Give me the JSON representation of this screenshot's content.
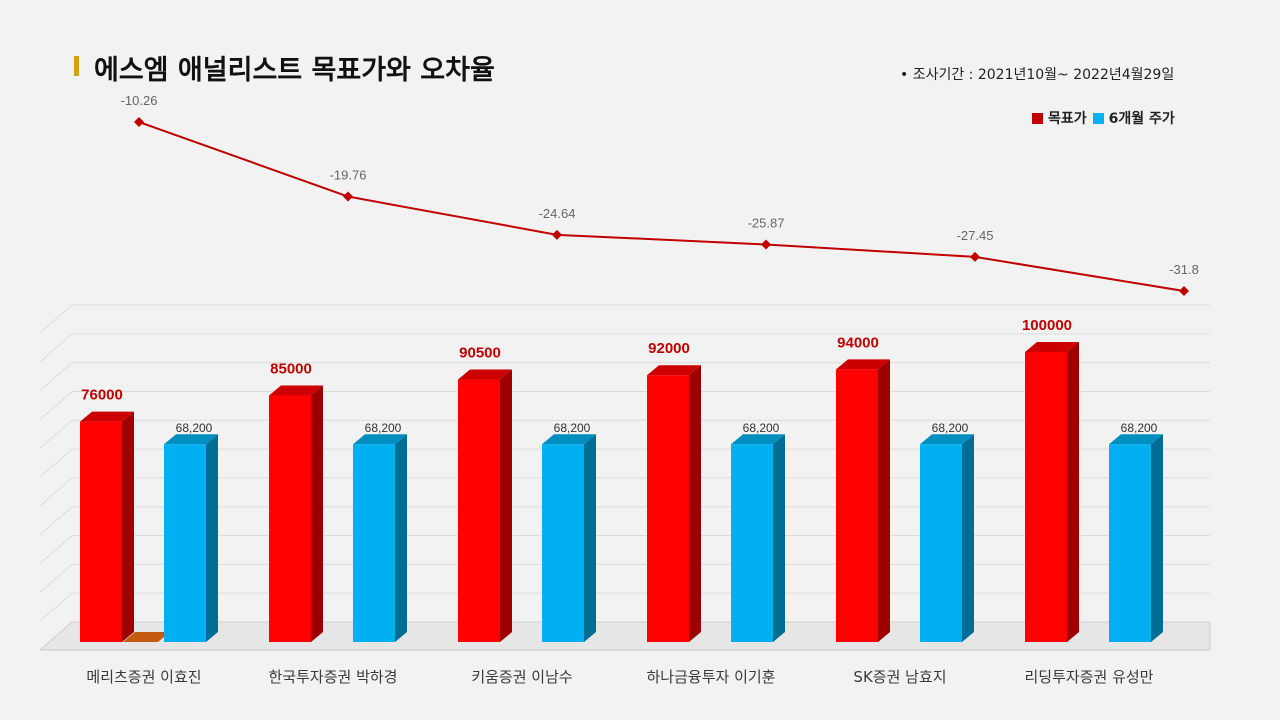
{
  "title": "에스엠 애널리스트 목표가와 오차율",
  "period": "•  조사기간 : 2021년10월~ 2022년4월29일",
  "chart_data": {
    "type": "bar",
    "categories": [
      "메리츠증권 이효진",
      "한국투자증권 박하경",
      "키움증권 이남수",
      "하나금융투자 이기훈",
      "SK증권 남효지",
      "리딩투자증권 유성만"
    ],
    "series": [
      {
        "name": "목표가",
        "values": [
          76000,
          85000,
          90500,
          92000,
          94000,
          100000
        ],
        "labels": [
          "76000",
          "85000",
          "90500",
          "92000",
          "94000",
          "100000"
        ],
        "color": "#ff0000"
      },
      {
        "name": "6개월 주가",
        "values": [
          68200,
          68200,
          68200,
          68200,
          68200,
          68200
        ],
        "labels": [
          "68,200",
          "68,200",
          "68,200",
          "68,200",
          "68,200",
          "68,200"
        ],
        "color": "#00b0f0"
      }
    ],
    "error_rate": {
      "values": [
        -10.26,
        -19.76,
        -24.64,
        -25.87,
        -27.45,
        -31.8
      ],
      "labels": [
        "-10.26",
        "-19.76",
        "-24.64",
        "-25.87",
        "-27.45",
        "-31.8"
      ],
      "color": "#c00000"
    },
    "ylim": [
      0,
      110000
    ],
    "grid": true,
    "legend": "top-right"
  }
}
